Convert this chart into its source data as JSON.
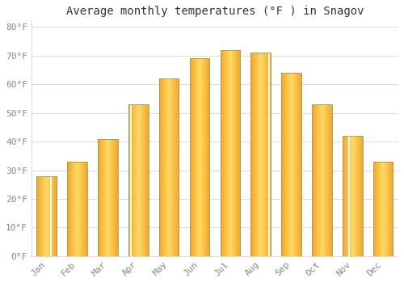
{
  "title": "Average monthly temperatures (°F ) in Snagov",
  "months": [
    "Jan",
    "Feb",
    "Mar",
    "Apr",
    "May",
    "Jun",
    "Jul",
    "Aug",
    "Sep",
    "Oct",
    "Nov",
    "Dec"
  ],
  "values": [
    28,
    33,
    41,
    53,
    62,
    69,
    72,
    71,
    64,
    53,
    42,
    33
  ],
  "bar_color_center": "#FFD966",
  "bar_color_edge": "#F5A623",
  "bar_outline_color": "#999966",
  "ylim": [
    0,
    82
  ],
  "yticks": [
    0,
    10,
    20,
    30,
    40,
    50,
    60,
    70,
    80
  ],
  "ytick_labels": [
    "0°F",
    "10°F",
    "20°F",
    "30°F",
    "40°F",
    "50°F",
    "60°F",
    "70°F",
    "80°F"
  ],
  "background_color": "#ffffff",
  "grid_color": "#dddddd",
  "title_fontsize": 10,
  "tick_fontsize": 8,
  "tick_color": "#888888",
  "figsize": [
    5.0,
    3.5
  ],
  "dpi": 100
}
